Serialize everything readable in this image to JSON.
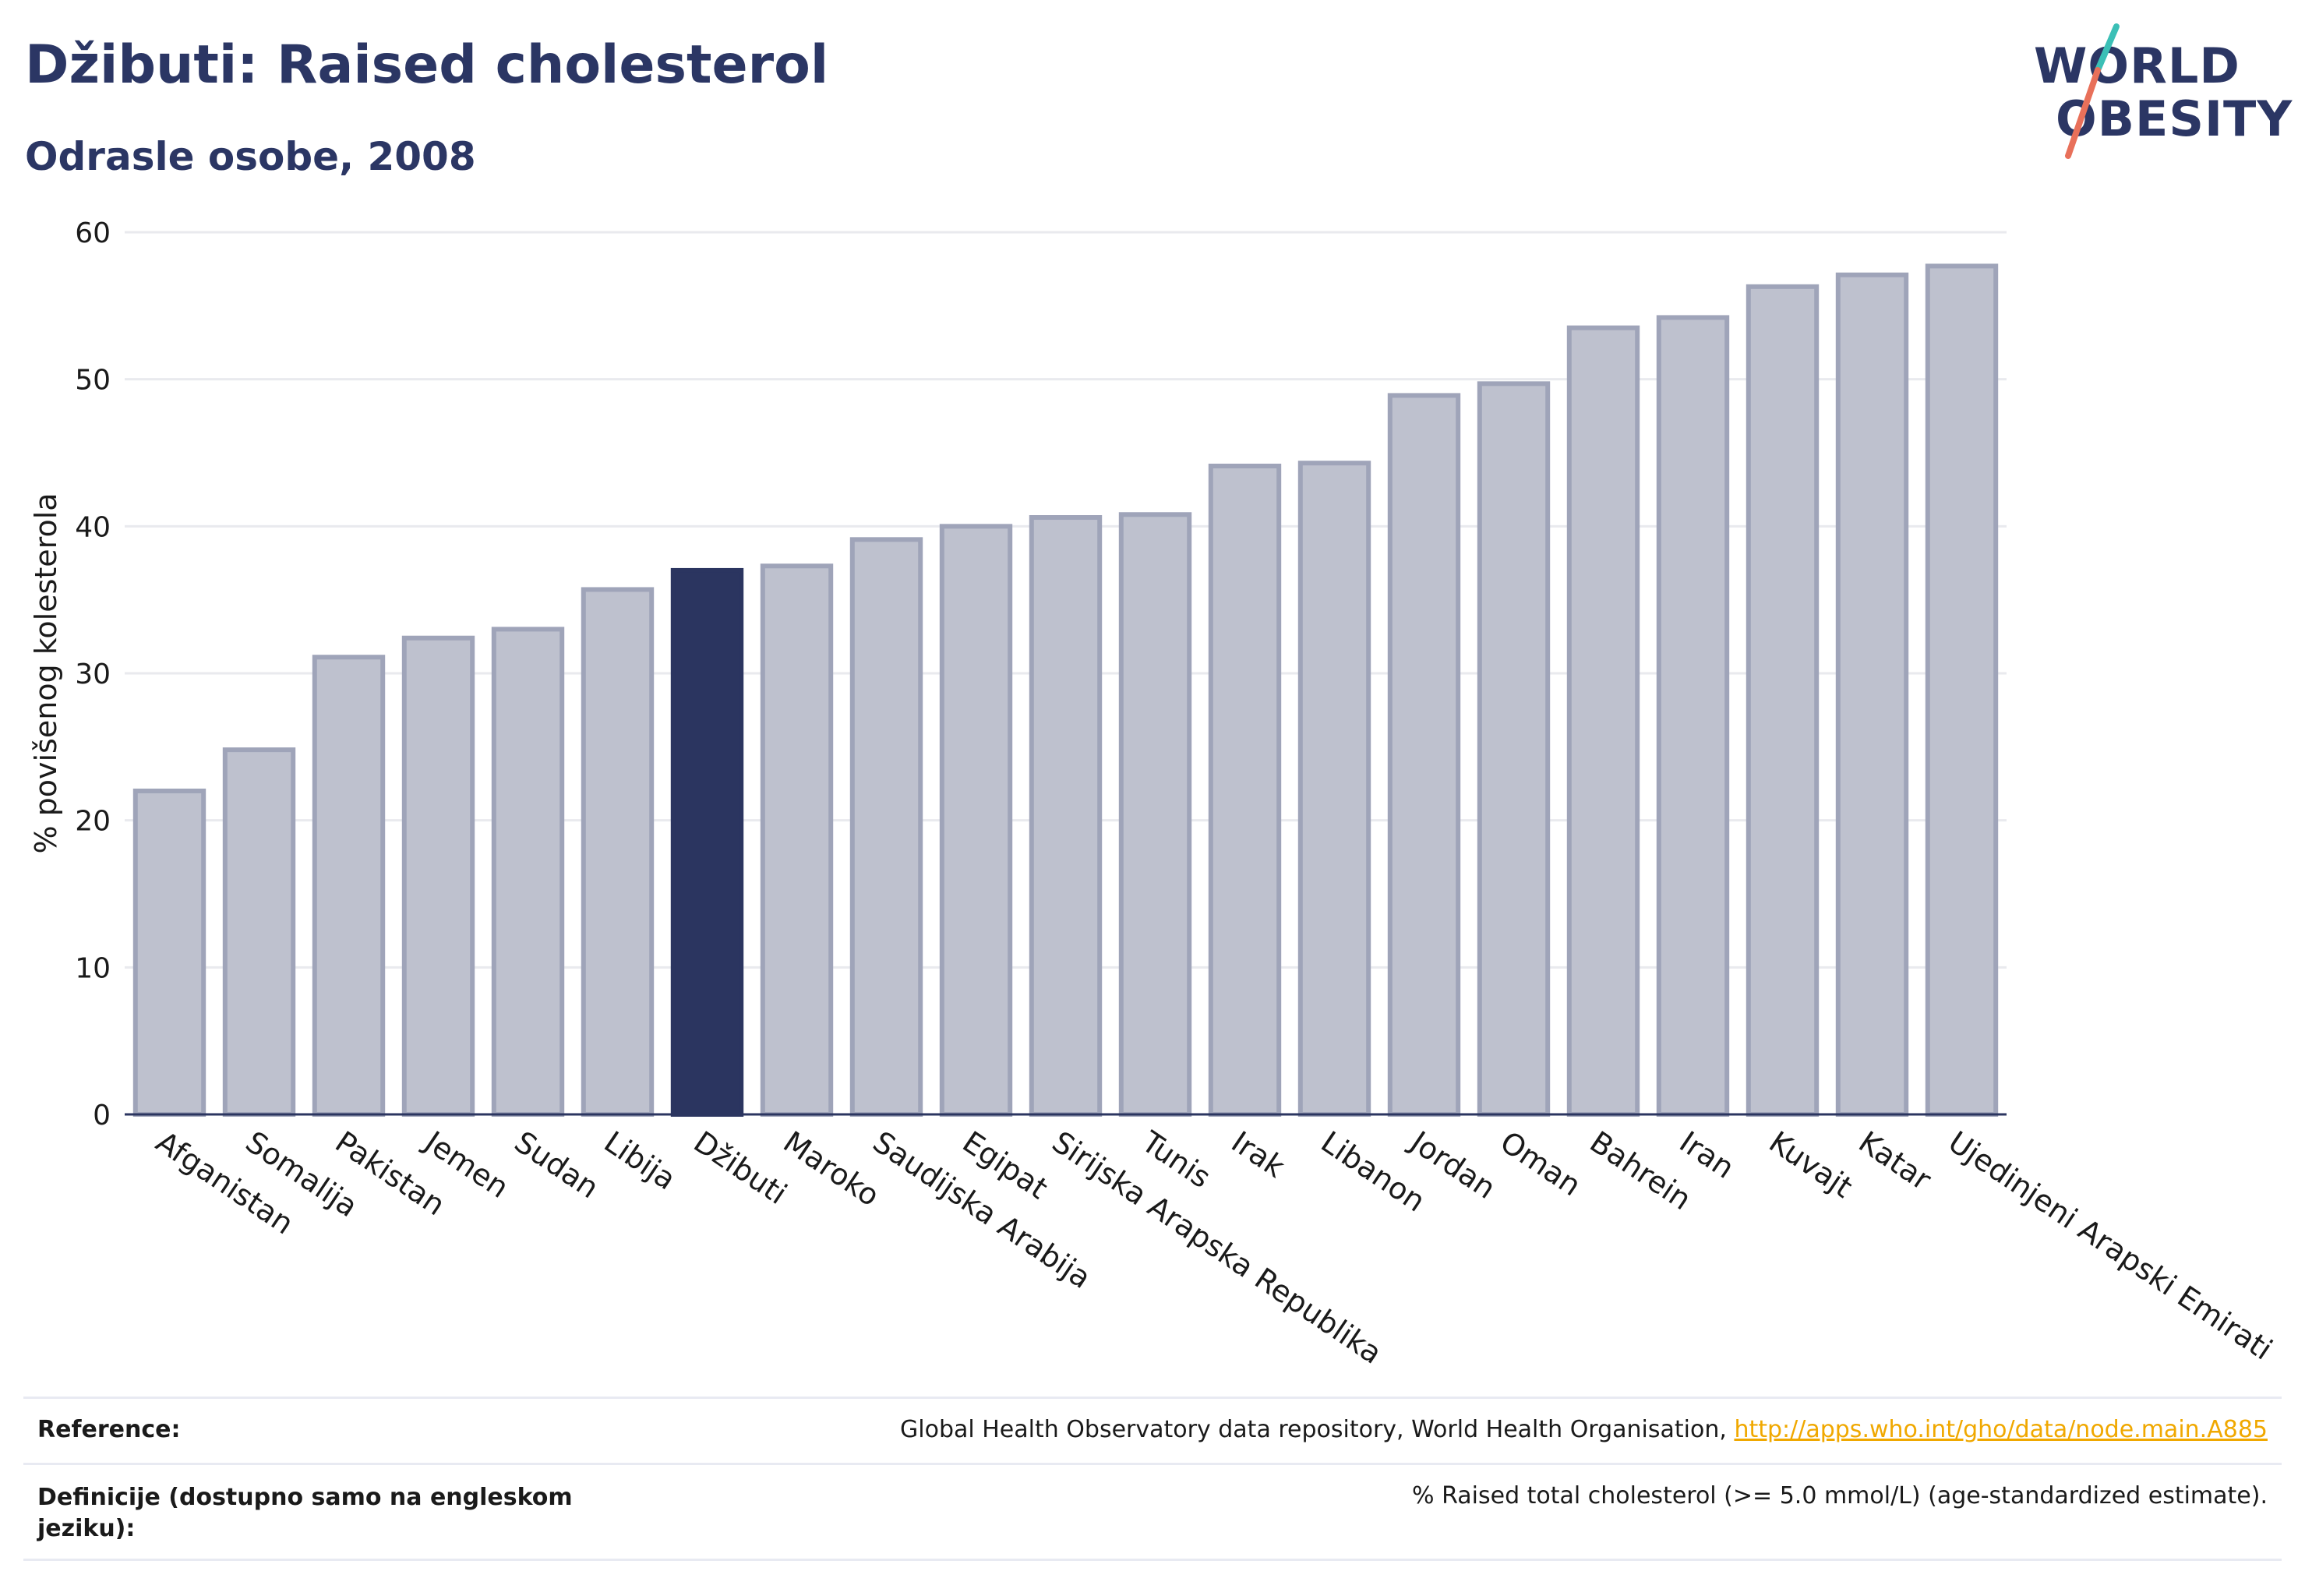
{
  "header": {
    "title": "Džibuti: Raised cholesterol",
    "subtitle": "Odrasle osobe, 2008"
  },
  "logo": {
    "line1": "WORLD",
    "line2": "OBESITY",
    "accent_colors": [
      "#3bbfb6",
      "#e8705a"
    ]
  },
  "chart_data": {
    "type": "bar",
    "title": "Džibuti: Raised cholesterol",
    "subtitle": "Odrasle osobe, 2008",
    "xlabel": "",
    "ylabel": "% povišenog kolesterola",
    "ylim": [
      0,
      60
    ],
    "yticks": [
      0,
      10,
      20,
      30,
      40,
      50,
      60
    ],
    "grid": true,
    "highlight": "Džibuti",
    "colors": {
      "highlight": "#2b3560",
      "default": "#bec1ce",
      "default_stroke": "#9fa4b9"
    },
    "categories": [
      "Afganistan",
      "Somalija",
      "Pakistan",
      "Jemen",
      "Sudan",
      "Libija",
      "Džibuti",
      "Maroko",
      "Saudijska Arabija",
      "Egipat",
      "Sirijska Arapska Republika",
      "Tunis",
      "Irak",
      "Libanon",
      "Jordan",
      "Oman",
      "Bahrein",
      "Iran",
      "Kuvajt",
      "Katar",
      "Ujedinjeni Arapski Emirati"
    ],
    "values": [
      22.0,
      24.8,
      31.1,
      32.4,
      33.0,
      35.7,
      37.0,
      37.3,
      39.1,
      40.0,
      40.6,
      40.8,
      44.1,
      44.3,
      48.9,
      49.7,
      53.5,
      54.2,
      56.3,
      57.1,
      57.7
    ]
  },
  "footer": {
    "reference_label": "Reference:",
    "reference_text": "Global Health Observatory data repository, World Health Organisation, ",
    "reference_link": "http://apps.who.int/gho/data/node.main.A885",
    "definition_label": "Definicije (dostupno samo na engleskom jeziku):",
    "definition_text": "% Raised total cholesterol (>= 5.0 mmol/L) (age-standardized estimate)."
  }
}
